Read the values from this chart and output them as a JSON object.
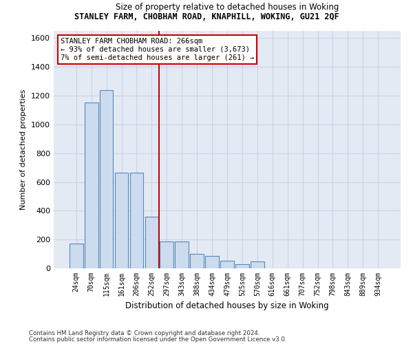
{
  "title": "STANLEY FARM, CHOBHAM ROAD, KNAPHILL, WOKING, GU21 2QF",
  "subtitle": "Size of property relative to detached houses in Woking",
  "xlabel": "Distribution of detached houses by size in Woking",
  "ylabel": "Number of detached properties",
  "categories": [
    "24sqm",
    "70sqm",
    "115sqm",
    "161sqm",
    "206sqm",
    "252sqm",
    "297sqm",
    "343sqm",
    "388sqm",
    "434sqm",
    "479sqm",
    "525sqm",
    "570sqm",
    "616sqm",
    "661sqm",
    "707sqm",
    "752sqm",
    "798sqm",
    "843sqm",
    "889sqm",
    "934sqm"
  ],
  "values": [
    170,
    1155,
    1240,
    665,
    665,
    360,
    185,
    185,
    100,
    85,
    55,
    30,
    50,
    0,
    0,
    0,
    0,
    0,
    0,
    0,
    0
  ],
  "bar_color": "#ccdcee",
  "bar_edge_color": "#5588bb",
  "vline_x": 6.0,
  "vline_color": "#cc0000",
  "annotation_text": "STANLEY FARM CHOBHAM ROAD: 266sqm\n← 93% of detached houses are smaller (3,673)\n7% of semi-detached houses are larger (261) →",
  "annotation_box_color": "#ffffff",
  "annotation_box_edge": "#cc0000",
  "ylim": [
    0,
    1650
  ],
  "yticks": [
    0,
    200,
    400,
    600,
    800,
    1000,
    1200,
    1400,
    1600
  ],
  "grid_color": "#c8d4e4",
  "bg_color": "#e4eaf4",
  "fig_bg": "#ffffff",
  "footer1": "Contains HM Land Registry data © Crown copyright and database right 2024.",
  "footer2": "Contains public sector information licensed under the Open Government Licence v3.0."
}
